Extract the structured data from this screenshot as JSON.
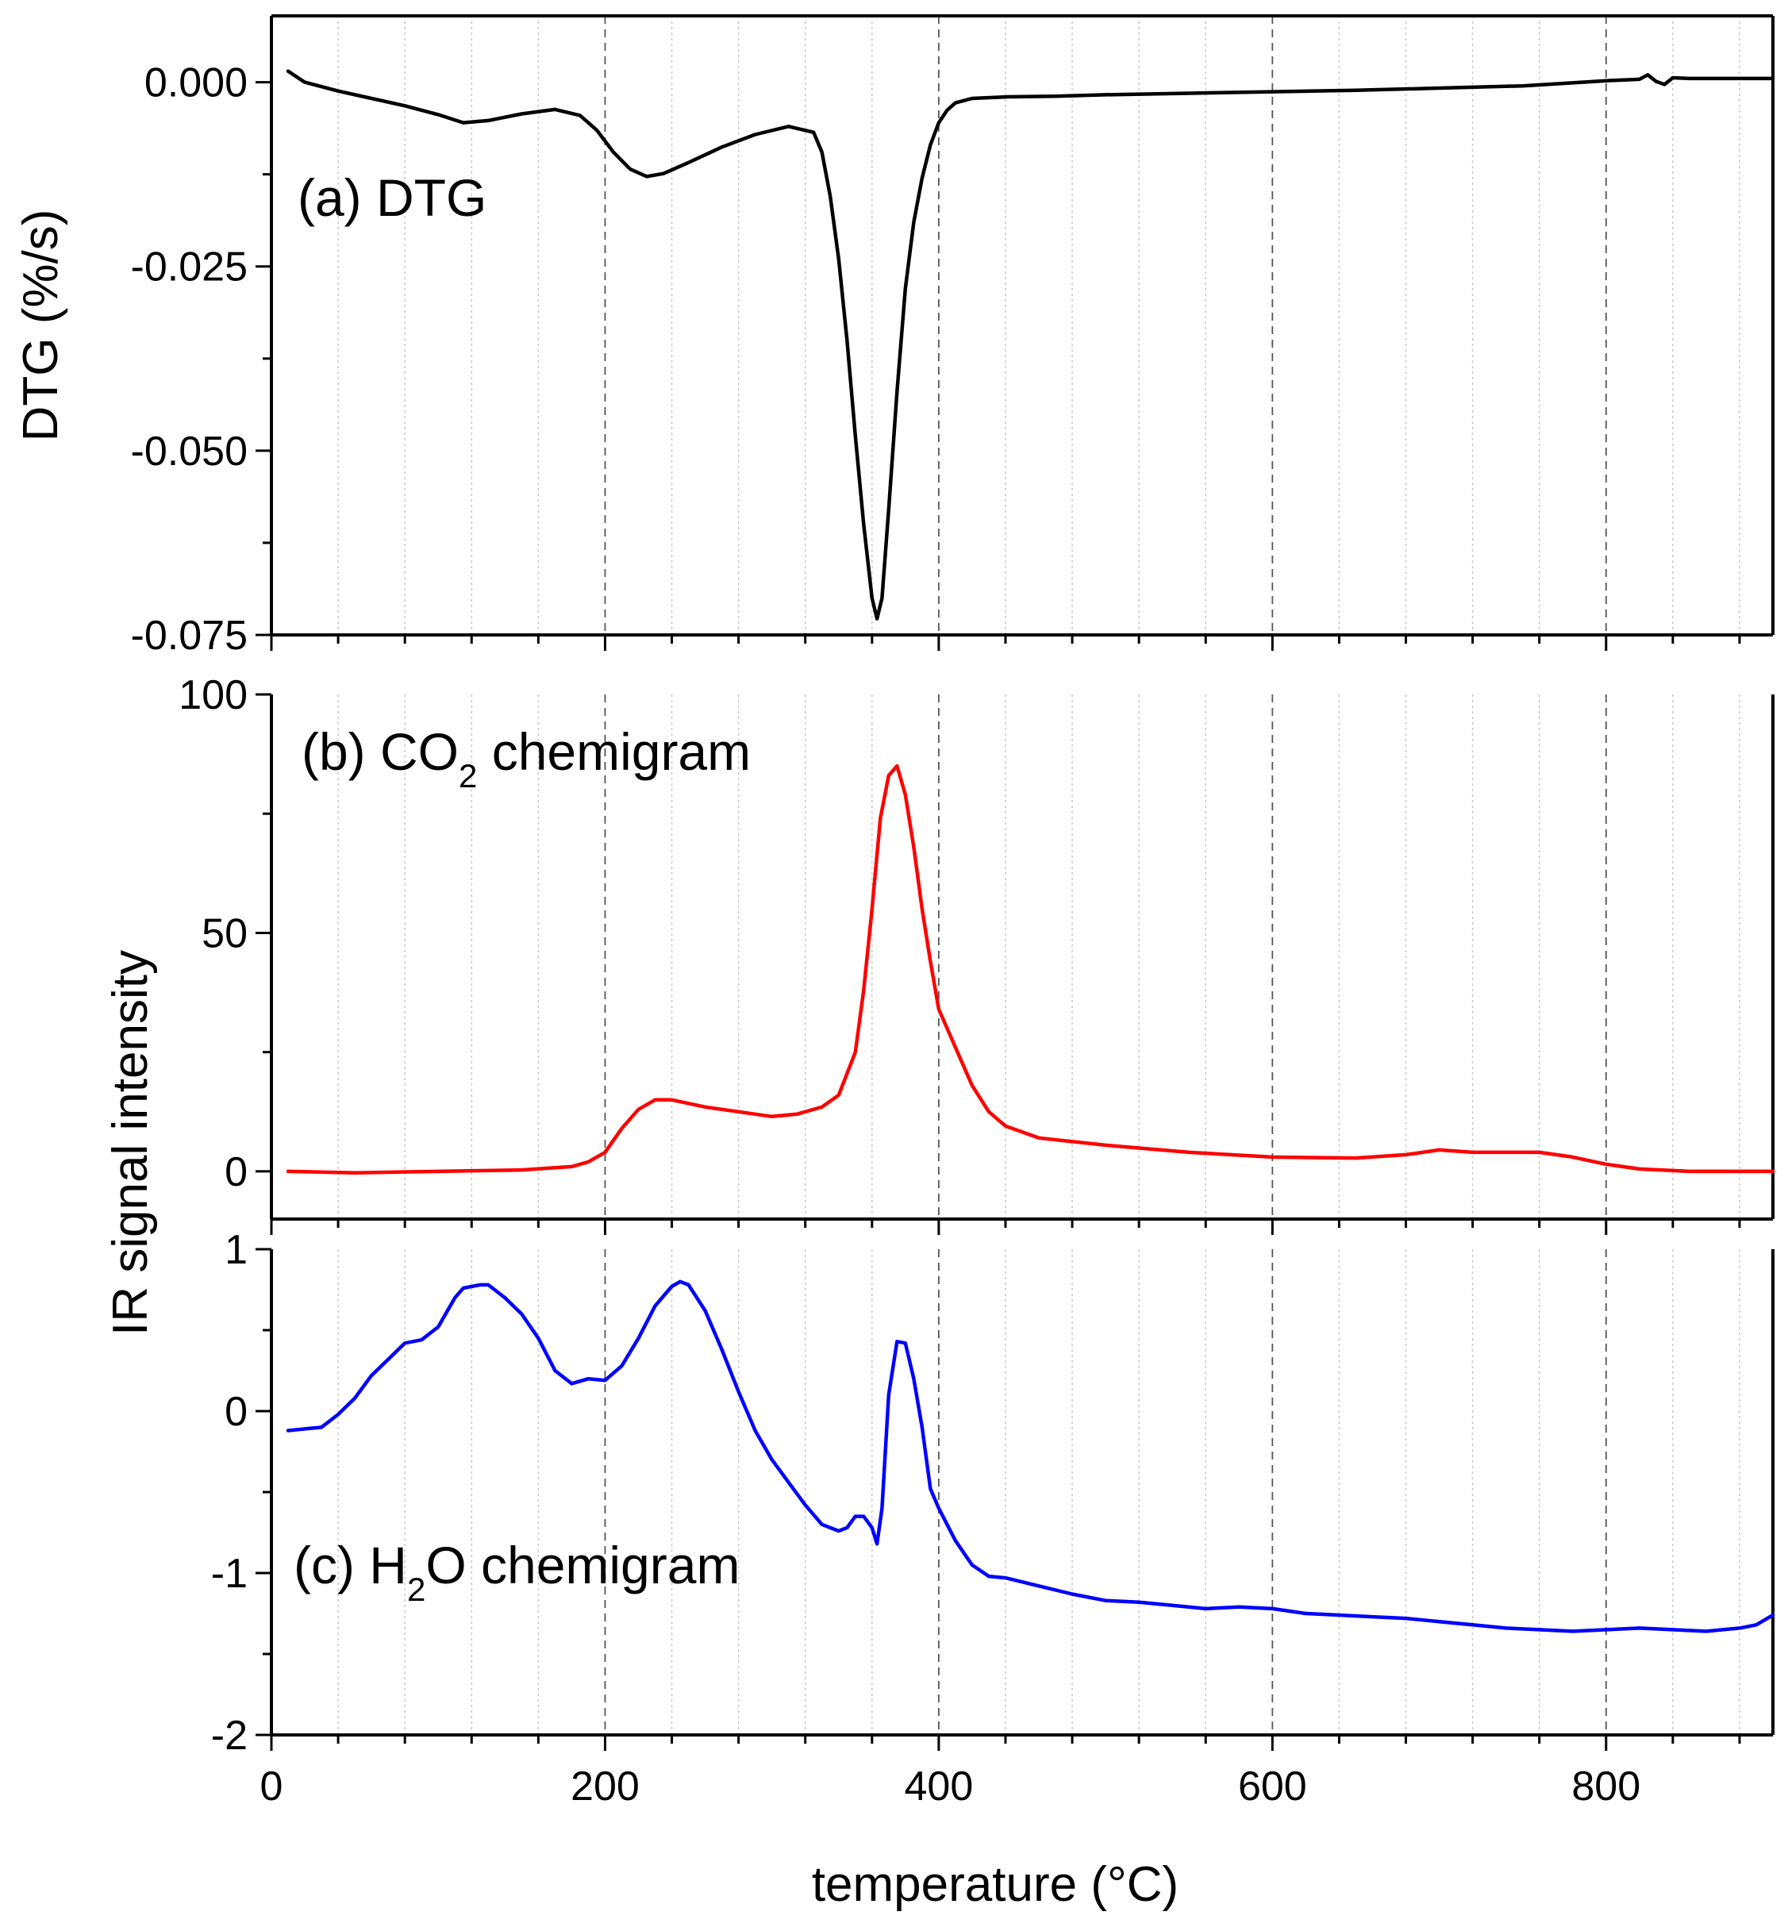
{
  "chart_data": {
    "type": "line",
    "shared_x": {
      "label": "temperature (°C)",
      "xlim": [
        0,
        900
      ],
      "ticks": [
        0,
        200,
        400,
        600,
        800
      ],
      "tick_labels": [
        "0",
        "200",
        "400",
        "600",
        "800"
      ],
      "minor_step": 40
    },
    "panels": [
      {
        "id": "dtg",
        "title": {
          "prefix": "(a) DTG",
          "sub": "",
          "suffix": ""
        },
        "ylabel": "DTG (%/s)",
        "ylim": [
          -0.075,
          0.009
        ],
        "yticks": [
          0.0,
          -0.025,
          -0.05,
          -0.075
        ],
        "ytick_labels": [
          "0.000",
          "-0.025",
          "-0.050",
          "-0.075"
        ],
        "minor_y": [
          -0.0125,
          -0.0375,
          -0.0625
        ],
        "color": "#000000",
        "series": [
          {
            "name": "DTG",
            "x": [
              10,
              20,
              40,
              60,
              80,
              100,
              115,
              130,
              150,
              170,
              185,
              195,
              205,
              215,
              225,
              235,
              250,
              270,
              290,
              310,
              325,
              330,
              335,
              340,
              345,
              350,
              355,
              360,
              363,
              366,
              370,
              375,
              380,
              385,
              390,
              395,
              400,
              405,
              410,
              420,
              440,
              470,
              500,
              550,
              600,
              650,
              700,
              750,
              800,
              820,
              825,
              830,
              835,
              840,
              850,
              900
            ],
            "y": [
              0.0015,
              0.0,
              -0.0012,
              -0.0022,
              -0.0032,
              -0.0044,
              -0.0055,
              -0.0052,
              -0.0043,
              -0.0037,
              -0.0045,
              -0.0065,
              -0.0095,
              -0.0118,
              -0.0128,
              -0.0124,
              -0.0109,
              -0.0088,
              -0.0071,
              -0.006,
              -0.0068,
              -0.0095,
              -0.0155,
              -0.024,
              -0.035,
              -0.048,
              -0.06,
              -0.07,
              -0.0728,
              -0.07,
              -0.058,
              -0.042,
              -0.028,
              -0.019,
              -0.013,
              -0.0085,
              -0.0055,
              -0.0038,
              -0.0028,
              -0.0022,
              -0.002,
              -0.0019,
              -0.0017,
              -0.0015,
              -0.0013,
              -0.0011,
              -0.0008,
              -0.0005,
              0.0002,
              0.0004,
              0.001,
              0.0001,
              -0.0003,
              0.0006,
              0.0005,
              0.0005
            ]
          }
        ]
      },
      {
        "id": "co2",
        "title": {
          "prefix": "(b) CO",
          "sub": "2",
          "suffix": " chemigram"
        },
        "ylabel": "",
        "ylim": [
          -10,
          100
        ],
        "yticks": [
          0,
          50,
          100
        ],
        "ytick_labels": [
          "0",
          "50",
          "100"
        ],
        "minor_y": [
          25,
          75
        ],
        "color": "#ff0000",
        "series": [
          {
            "name": "CO2 chemigram",
            "x": [
              10,
              50,
              100,
              150,
              180,
              190,
              200,
              210,
              220,
              230,
              240,
              260,
              280,
              300,
              315,
              330,
              340,
              350,
              355,
              360,
              365,
              370,
              375,
              380,
              385,
              390,
              395,
              400,
              405,
              410,
              420,
              430,
              440,
              460,
              500,
              550,
              600,
              650,
              680,
              700,
              720,
              760,
              780,
              800,
              820,
              850,
              900
            ],
            "y": [
              0,
              -0.3,
              0,
              0.3,
              1,
              2,
              4,
              9,
              13,
              15,
              15,
              13.5,
              12.5,
              11.5,
              12,
              13.5,
              16,
              25,
              38,
              55,
              74,
              83,
              85,
              79,
              68,
              55,
              44,
              34,
              30,
              26,
              18,
              12.5,
              9.5,
              7,
              5.5,
              4,
              3,
              2.8,
              3.5,
              4.5,
              4,
              4,
              3,
              1.5,
              0.5,
              0,
              0
            ]
          }
        ]
      },
      {
        "id": "h2o",
        "title": {
          "prefix": "(c) H",
          "sub": "2",
          "suffix": "O chemigram"
        },
        "ylabel": "",
        "ylim": [
          -2,
          1
        ],
        "yticks": [
          1,
          0,
          -1,
          -2
        ],
        "ytick_labels": [
          "1",
          "0",
          "-1",
          "-2"
        ],
        "minor_y": [
          0.5,
          -0.5,
          -1.5
        ],
        "color": "#0000ff",
        "series": [
          {
            "name": "H2O chemigram",
            "x": [
              10,
              20,
              30,
              40,
              50,
              60,
              70,
              80,
              90,
              100,
              110,
              115,
              120,
              125,
              130,
              140,
              150,
              160,
              170,
              180,
              190,
              200,
              210,
              220,
              230,
              240,
              245,
              250,
              260,
              270,
              280,
              290,
              300,
              310,
              320,
              330,
              340,
              345,
              350,
              355,
              360,
              363,
              366,
              370,
              375,
              380,
              385,
              390,
              395,
              400,
              410,
              420,
              430,
              440,
              460,
              480,
              500,
              520,
              540,
              560,
              580,
              600,
              620,
              640,
              660,
              680,
              700,
              720,
              740,
              760,
              780,
              800,
              820,
              840,
              860,
              880,
              890,
              900
            ],
            "y": [
              -0.12,
              -0.11,
              -0.1,
              -0.02,
              0.08,
              0.22,
              0.32,
              0.42,
              0.44,
              0.52,
              0.7,
              0.76,
              0.77,
              0.78,
              0.78,
              0.7,
              0.6,
              0.45,
              0.25,
              0.17,
              0.2,
              0.19,
              0.28,
              0.45,
              0.65,
              0.77,
              0.8,
              0.78,
              0.62,
              0.38,
              0.12,
              -0.12,
              -0.3,
              -0.44,
              -0.58,
              -0.7,
              -0.74,
              -0.72,
              -0.65,
              -0.65,
              -0.72,
              -0.82,
              -0.6,
              0.1,
              0.43,
              0.42,
              0.2,
              -0.1,
              -0.48,
              -0.6,
              -0.8,
              -0.95,
              -1.02,
              -1.03,
              -1.08,
              -1.13,
              -1.17,
              -1.18,
              -1.2,
              -1.22,
              -1.21,
              -1.22,
              -1.25,
              -1.26,
              -1.27,
              -1.28,
              -1.3,
              -1.32,
              -1.34,
              -1.35,
              -1.36,
              -1.35,
              -1.34,
              -1.35,
              -1.36,
              -1.34,
              -1.32,
              -1.26
            ]
          }
        ]
      }
    ],
    "shared_ylabel": "IR signal intensity"
  }
}
